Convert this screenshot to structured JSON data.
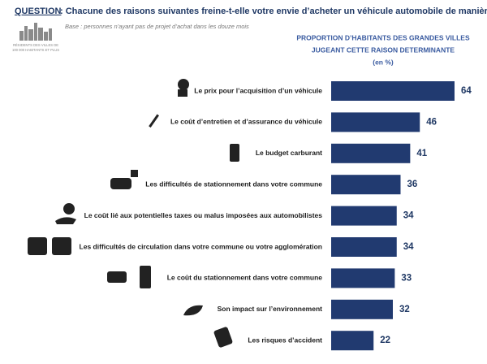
{
  "chart_data": {
    "type": "bar",
    "orientation": "horizontal",
    "question_label": "QUESTION",
    "title": ": Chacune des raisons suivantes freine-t-elle votre envie d’acheter un véhicule automobile de manière… ?",
    "subtitle": "Base : personnes n’ayant pas de projet d’achat dans les douze mois",
    "logo_text": [
      "RÉSIDENTS DES VILLES DE",
      "100 000 HABITANTS ET PLUS"
    ],
    "header": [
      "PROPORTION D’HABITANTS DES GRANDES VILLES",
      "JUGEANT CETTE RAISON DETERMINANTE",
      "(en %)"
    ],
    "categories": [
      "Le prix pour l’acquisition d’un véhicule",
      "Le coût d’entretien et d’assurance du véhicule",
      "Le budget carburant",
      "Les difficultés de stationnement dans votre commune",
      "Le coût lié aux potentielles taxes ou malus imposées aux automobilistes",
      "Les difficultés de circulation dans votre commune ou votre agglomération",
      "Le coût du stationnement dans votre commune",
      "Son impact sur l’environnement",
      "Les risques d’accident"
    ],
    "values": [
      64,
      46,
      41,
      36,
      34,
      34,
      33,
      32,
      22
    ],
    "color": "#213a70"
  }
}
